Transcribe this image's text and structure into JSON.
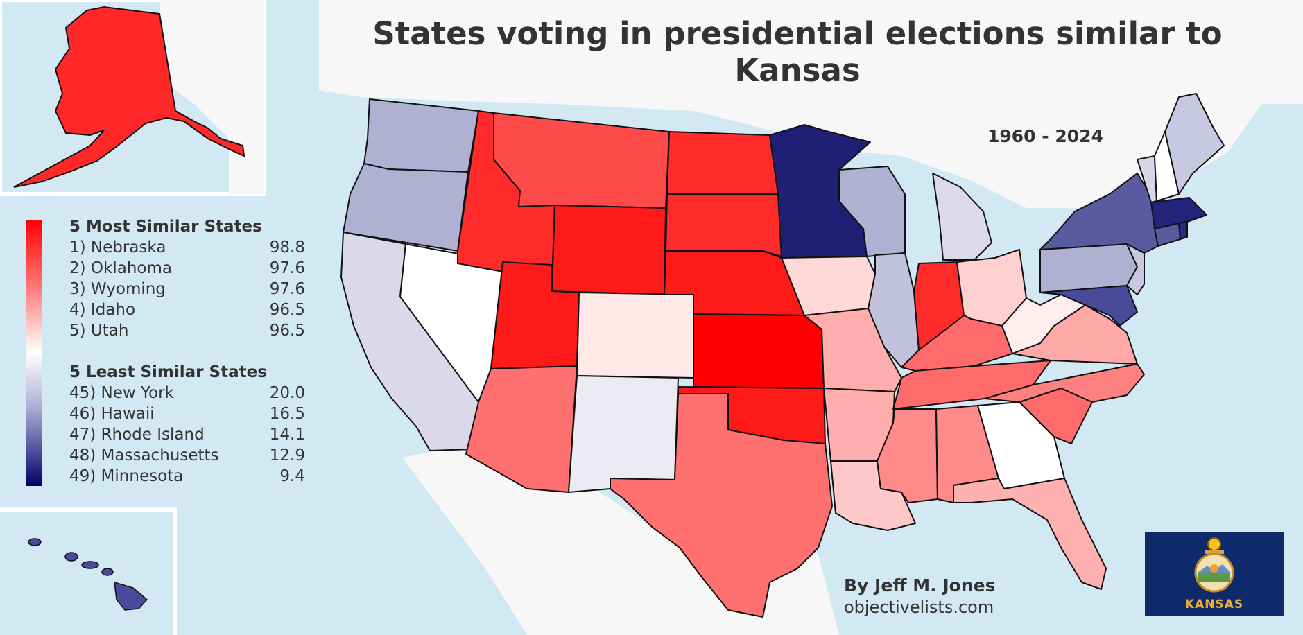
{
  "title": "States voting in presidential elections similar to Kansas",
  "years": "1960 - 2024",
  "legend": {
    "most_heading": "5 Most Similar States",
    "most": [
      {
        "label": "1) Nebraska",
        "value": "98.8"
      },
      {
        "label": "2) Oklahoma",
        "value": "97.6"
      },
      {
        "label": "3) Wyoming",
        "value": "97.6"
      },
      {
        "label": "4) Idaho",
        "value": "96.5"
      },
      {
        "label": "5) Utah",
        "value": "96.5"
      }
    ],
    "least_heading": "5 Least Similar States",
    "least": [
      {
        "label": "45) New York",
        "value": "20.0"
      },
      {
        "label": "46) Hawaii",
        "value": "16.5"
      },
      {
        "label": "47) Rhode Island",
        "value": "14.1"
      },
      {
        "label": "48) Massachusetts",
        "value": "12.9"
      },
      {
        "label": "49) Minnesota",
        "value": "9.4"
      }
    ]
  },
  "author": "By Jeff M. Jones",
  "website": "objectivelists.com",
  "flag": {
    "text": "KANSAS",
    "background": "#0f2a6b",
    "text_color": "#e8b233"
  },
  "colors": {
    "water": "#d2e9f3",
    "land": "#f7f7f7",
    "most_similar": "#ff0000",
    "least_similar": "#000066"
  }
}
